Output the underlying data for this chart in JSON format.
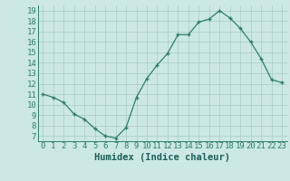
{
  "x": [
    0,
    1,
    2,
    3,
    4,
    5,
    6,
    7,
    8,
    9,
    10,
    11,
    12,
    13,
    14,
    15,
    16,
    17,
    18,
    19,
    20,
    21,
    22,
    23
  ],
  "y": [
    11,
    10.7,
    10.2,
    9.1,
    8.6,
    7.7,
    7.0,
    6.8,
    7.8,
    10.7,
    12.5,
    13.8,
    14.9,
    16.7,
    16.7,
    17.9,
    18.2,
    19.0,
    18.3,
    17.3,
    16.0,
    14.4,
    12.4,
    12.1
  ],
  "title": "",
  "xlabel": "Humidex (Indice chaleur)",
  "ylabel": "",
  "xlim": [
    -0.5,
    23.5
  ],
  "ylim": [
    6.5,
    19.5
  ],
  "yticks": [
    7,
    8,
    9,
    10,
    11,
    12,
    13,
    14,
    15,
    16,
    17,
    18,
    19
  ],
  "xticks": [
    0,
    1,
    2,
    3,
    4,
    5,
    6,
    7,
    8,
    9,
    10,
    11,
    12,
    13,
    14,
    15,
    16,
    17,
    18,
    19,
    20,
    21,
    22,
    23
  ],
  "line_color": "#2e7d6e",
  "marker": "+",
  "bg_color": "#cce8e4",
  "grid_color": "#a8ccc8",
  "tick_color": "#2e7d6e",
  "label_color": "#1a5f55",
  "xlabel_fontsize": 7.5,
  "tick_fontsize": 6.5
}
